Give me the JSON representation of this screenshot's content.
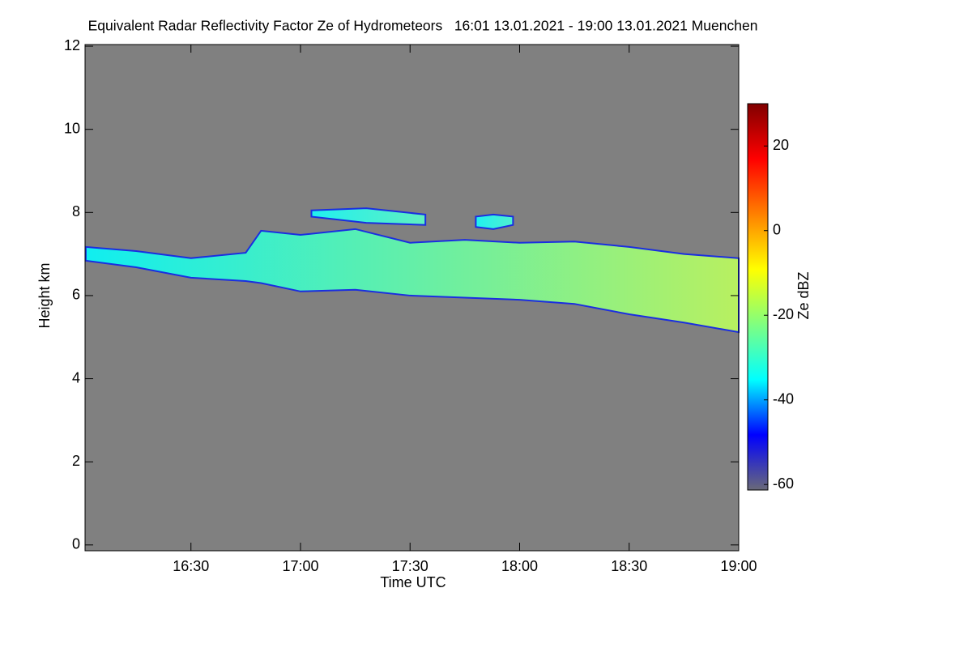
{
  "chart_data": {
    "type": "range-area",
    "title": "Equivalent Radar Reflectivity Factor Ze of Hydrometeors   16:01 13.01.2021 - 19:00 13.01.2021 Muenchen",
    "x_label": "Time UTC",
    "y_label": "Height km",
    "xlim": [
      16.0167,
      19.0
    ],
    "xticks": [
      {
        "value": 16.5,
        "label": "16:30"
      },
      {
        "value": 17.0,
        "label": "17:00"
      },
      {
        "value": 17.5,
        "label": "17:30"
      },
      {
        "value": 18.0,
        "label": "18:00"
      },
      {
        "value": 18.5,
        "label": "18:30"
      },
      {
        "value": 19.0,
        "label": "19:00"
      }
    ],
    "ylim": [
      -0.14,
      12.04
    ],
    "yticks": [
      0,
      2,
      4,
      6,
      8,
      10,
      12
    ],
    "background": "#808080",
    "edge_color": "#1a2ee0",
    "bands": [
      {
        "color_start": "#10eef0",
        "color_end": "#b8f060",
        "x": [
          16.02,
          16.25,
          16.5,
          16.75,
          16.82,
          17.0,
          17.25,
          17.5,
          17.75,
          18.0,
          18.25,
          18.5,
          18.75,
          19.0
        ],
        "top": [
          7.17,
          7.07,
          6.9,
          7.03,
          7.56,
          7.46,
          7.6,
          7.27,
          7.34,
          7.27,
          7.3,
          7.17,
          7.0,
          6.9
        ],
        "base": [
          6.84,
          6.68,
          6.43,
          6.35,
          6.3,
          6.1,
          6.14,
          6.0,
          5.95,
          5.9,
          5.8,
          5.55,
          5.35,
          5.12
        ]
      },
      {
        "color_start": "#20f0f0",
        "color_end": "#60f0c0",
        "x": [
          17.05,
          17.3,
          17.57
        ],
        "top": [
          8.05,
          8.1,
          7.95
        ],
        "base": [
          7.9,
          7.75,
          7.7
        ]
      },
      {
        "color_start": "#20f0f0",
        "color_end": "#50f0d0",
        "x": [
          17.8,
          17.88,
          17.97
        ],
        "top": [
          7.9,
          7.95,
          7.9
        ],
        "base": [
          7.65,
          7.6,
          7.7
        ]
      }
    ],
    "colorbar": {
      "label": "Ze dBZ",
      "lim": [
        -61.3,
        30
      ],
      "ticks": [
        -60,
        -40,
        -20,
        0,
        20
      ],
      "colors": [
        "#6a6a78",
        "#0000ff",
        "#00ffff",
        "#80ff80",
        "#ffff00",
        "#ff8000",
        "#ff0000",
        "#800000"
      ]
    }
  }
}
